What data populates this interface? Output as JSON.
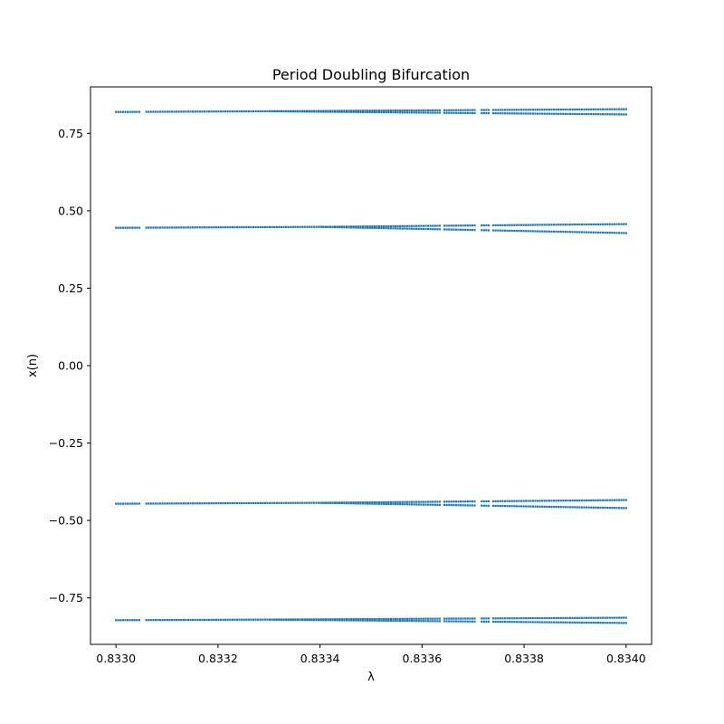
{
  "chart_data": {
    "type": "scatter",
    "title": "Period Doubling Bifurcation",
    "xlabel": "λ",
    "ylabel": "x(n)",
    "xlim": [
      0.83295,
      0.83405
    ],
    "ylim": [
      -0.9,
      0.9
    ],
    "grid": false,
    "marker_color": "#1f77b4",
    "x_ticks": [
      {
        "value": 0.833,
        "label": "0.8330"
      },
      {
        "value": 0.8332,
        "label": "0.8332"
      },
      {
        "value": 0.8334,
        "label": "0.8334"
      },
      {
        "value": 0.8336,
        "label": "0.8336"
      },
      {
        "value": 0.8338,
        "label": "0.8338"
      },
      {
        "value": 0.834,
        "label": "0.8340"
      }
    ],
    "y_ticks": [
      {
        "value": 0.75,
        "label": "0.75"
      },
      {
        "value": 0.5,
        "label": "0.50"
      },
      {
        "value": 0.25,
        "label": "0.25"
      },
      {
        "value": 0.0,
        "label": "0.00"
      },
      {
        "value": -0.25,
        "label": "−0.25"
      },
      {
        "value": -0.5,
        "label": "−0.50"
      },
      {
        "value": -0.75,
        "label": "−0.75"
      }
    ],
    "lambda_range": [
      0.833,
      0.834
    ],
    "branches": [
      {
        "y_start": 0.819,
        "y_end": 0.828,
        "split_at": 0.8333,
        "split_lower_end": 0.811
      },
      {
        "y_start": 0.445,
        "y_end": 0.457,
        "split_at": 0.8334,
        "split_lower_end": 0.428
      },
      {
        "y_start": -0.446,
        "y_end": -0.434,
        "split_at": 0.8334,
        "split_lower_end": -0.46
      },
      {
        "y_start": -0.822,
        "y_end": -0.814,
        "split_at": 0.8333,
        "split_lower_end": -0.831
      }
    ]
  }
}
